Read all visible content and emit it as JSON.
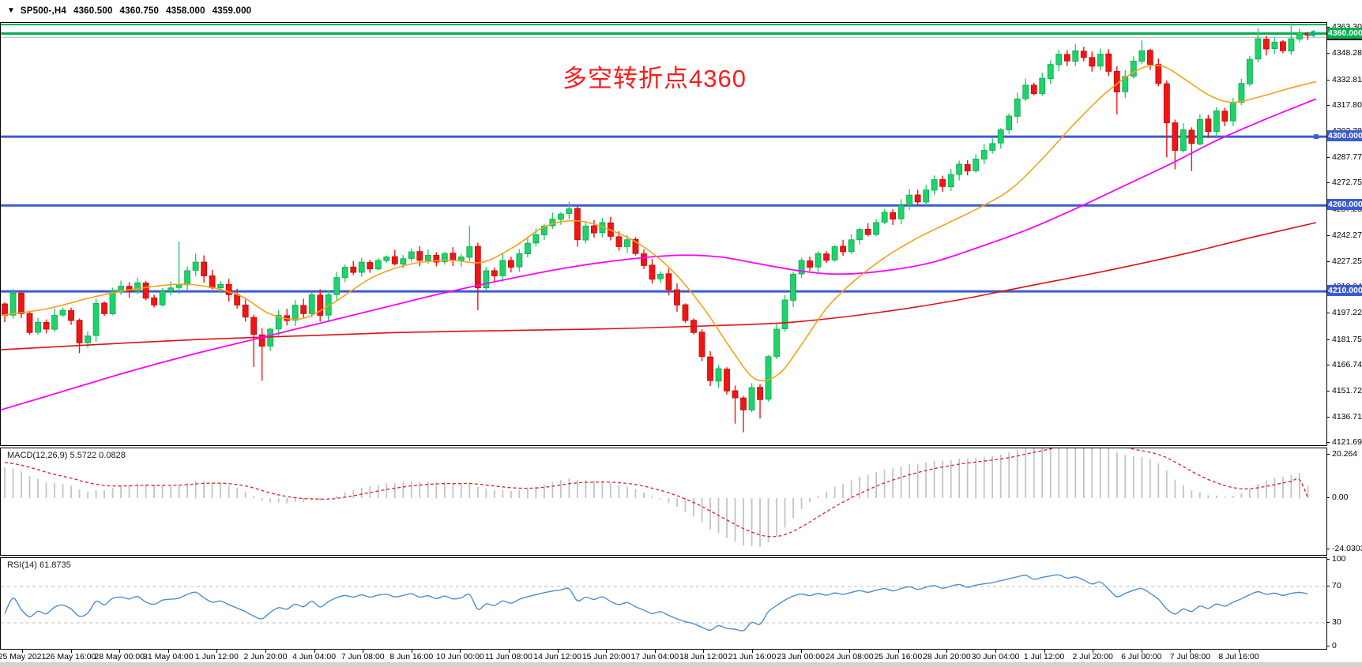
{
  "title_bar": {
    "dropdown_glyph": "▼",
    "symbol_period": "SP500-,H4",
    "open": "4360.500",
    "high": "4360.750",
    "low": "4358.000",
    "close": "4359.000"
  },
  "annotation": {
    "text": "多空转折点4360",
    "color": "#fb1d1d"
  },
  "colors": {
    "candle_up": "#1fd26a",
    "candle_up_border": "#0aa84f",
    "candle_down": "#f01515",
    "candle_down_border": "#c40808",
    "ma_fast": "#f7a11a",
    "ma_mid": "#ff00ff",
    "ma_slow": "#dd1111",
    "hline_green": "#00b050",
    "hline_blue": "#3c5bd0",
    "bid_line": "#b4b4b4",
    "macd_bar": "#c4c4c4",
    "macd_signal": "#dd2222",
    "rsi_line": "#4a8fd4",
    "rsi_level": "#bbbbbb",
    "badge_black": "#000000",
    "arrow_marker": "#00b487"
  },
  "price_axis": {
    "ticks": [
      "4363.300",
      "4348.285",
      "4332.815",
      "4317.800",
      "4302.785",
      "4287.770",
      "4272.755",
      "4257.285",
      "4242.270",
      "4227.255",
      "4212.240",
      "4197.225",
      "4181.755",
      "4166.740",
      "4151.725",
      "4136.710",
      "4121.695"
    ],
    "badges": [
      {
        "label": "4359.000",
        "price": 4359.0,
        "bg": "#000000"
      },
      {
        "label": "4360.000",
        "price": 4360.0,
        "bg": "#00b050"
      },
      {
        "label": "4300.000",
        "price": 4300.0,
        "bg": "#3c5bd0"
      },
      {
        "label": "4260.000",
        "price": 4260.0,
        "bg": "#3c5bd0"
      },
      {
        "label": "4210.000",
        "price": 4210.0,
        "bg": "#3c5bd0"
      }
    ]
  },
  "time_axis": {
    "labels": [
      "25 May 2021",
      "26 May 16:00",
      "28 May 00:00",
      "31 May 04:00",
      "1 Jun 12:00",
      "2 Jun 20:00",
      "4 Jun 04:00",
      "7 Jun 08:00",
      "8 Jun 16:00",
      "10 Jun 00:00",
      "11 Jun 08:00",
      "14 Jun 12:00",
      "15 Jun 20:00",
      "17 Jun 04:00",
      "18 Jun 12:00",
      "21 Jun 16:00",
      "23 Jun 00:00",
      "24 Jun 08:00",
      "25 Jun 16:00",
      "28 Jun 20:00",
      "30 Jun 04:00",
      "1 Jul 12:00",
      "2 Jul 20:00",
      "6 Jul 00:00",
      "7 Jul 08:00",
      "8 Jul 16:00"
    ]
  },
  "panels": {
    "macd": {
      "label": "MACD(12,26,9)",
      "values": "5.5722 0.0828",
      "ticks": [
        {
          "v": 20.264,
          "label": "20.264"
        },
        {
          "v": 0,
          "label": "0.00"
        },
        {
          "v": -24.0303,
          "label": "-24.0303"
        }
      ]
    },
    "rsi": {
      "label": "RSI(14)",
      "value": "61.8735",
      "ticks": [
        {
          "v": 100,
          "label": "100"
        },
        {
          "v": 70,
          "label": "70"
        },
        {
          "v": 30,
          "label": "30"
        },
        {
          "v": 0,
          "label": "0"
        }
      ],
      "levels": [
        70,
        30
      ]
    }
  },
  "chart_data": {
    "type": "candlestick",
    "symbol": "SP500-",
    "timeframe": "H4",
    "visible_bars": 158,
    "noise_seed": 7,
    "first_open": 4203,
    "closes_by_index": [
      [
        0,
        4196
      ],
      [
        1,
        4209
      ],
      [
        2,
        4197
      ],
      [
        3,
        4186
      ],
      [
        4,
        4192
      ],
      [
        5,
        4188
      ],
      [
        6,
        4196
      ],
      [
        7,
        4199
      ],
      [
        8,
        4193
      ],
      [
        9,
        4180
      ],
      [
        10,
        4184
      ],
      [
        11,
        4203
      ],
      [
        12,
        4197
      ],
      [
        13,
        4210
      ],
      [
        14,
        4213
      ],
      [
        15,
        4210
      ],
      [
        16,
        4215
      ],
      [
        17,
        4206
      ],
      [
        18,
        4202
      ],
      [
        19,
        4210
      ],
      [
        20,
        4212
      ],
      [
        21,
        4214
      ],
      [
        22,
        4222
      ],
      [
        23,
        4227
      ],
      [
        24,
        4219
      ],
      [
        25,
        4212
      ],
      [
        26,
        4214
      ],
      [
        27,
        4208
      ],
      [
        28,
        4202
      ],
      [
        29,
        4195
      ],
      [
        30,
        4185
      ],
      [
        31,
        4178
      ],
      [
        32,
        4188
      ],
      [
        33,
        4196
      ],
      [
        34,
        4193
      ],
      [
        35,
        4202
      ],
      [
        36,
        4197
      ],
      [
        37,
        4208
      ],
      [
        38,
        4196
      ],
      [
        39,
        4208
      ],
      [
        40,
        4218
      ],
      [
        41,
        4224
      ],
      [
        42,
        4221
      ],
      [
        43,
        4227
      ],
      [
        44,
        4223
      ],
      [
        45,
        4228
      ],
      [
        46,
        4230
      ],
      [
        47,
        4226
      ],
      [
        48,
        4229
      ],
      [
        49,
        4233
      ],
      [
        50,
        4228
      ],
      [
        51,
        4231
      ],
      [
        52,
        4227
      ],
      [
        53,
        4232
      ],
      [
        54,
        4228
      ],
      [
        55,
        4230
      ],
      [
        56,
        4236
      ],
      [
        57,
        4212
      ],
      [
        58,
        4222
      ],
      [
        59,
        4219
      ],
      [
        60,
        4228
      ],
      [
        61,
        4224
      ],
      [
        62,
        4232
      ],
      [
        63,
        4238
      ],
      [
        64,
        4243
      ],
      [
        65,
        4248
      ],
      [
        66,
        4252
      ],
      [
        67,
        4255
      ],
      [
        68,
        4258
      ],
      [
        69,
        4240
      ],
      [
        70,
        4248
      ],
      [
        71,
        4244
      ],
      [
        72,
        4250
      ],
      [
        73,
        4242
      ],
      [
        74,
        4236
      ],
      [
        75,
        4240
      ],
      [
        76,
        4232
      ],
      [
        77,
        4225
      ],
      [
        78,
        4217
      ],
      [
        79,
        4220
      ],
      [
        80,
        4211
      ],
      [
        81,
        4202
      ],
      [
        82,
        4193
      ],
      [
        83,
        4186
      ],
      [
        84,
        4172
      ],
      [
        85,
        4158
      ],
      [
        86,
        4165
      ],
      [
        87,
        4152
      ],
      [
        88,
        4148
      ],
      [
        89,
        4141
      ],
      [
        90,
        4154
      ],
      [
        91,
        4147
      ],
      [
        92,
        4172
      ],
      [
        93,
        4188
      ],
      [
        94,
        4205
      ],
      [
        95,
        4220
      ],
      [
        96,
        4228
      ],
      [
        97,
        4224
      ],
      [
        98,
        4232
      ],
      [
        99,
        4228
      ],
      [
        100,
        4236
      ],
      [
        101,
        4233
      ],
      [
        102,
        4240
      ],
      [
        103,
        4246
      ],
      [
        104,
        4243
      ],
      [
        105,
        4250
      ],
      [
        106,
        4256
      ],
      [
        107,
        4252
      ],
      [
        108,
        4260
      ],
      [
        109,
        4266
      ],
      [
        110,
        4262
      ],
      [
        111,
        4269
      ],
      [
        112,
        4275
      ],
      [
        113,
        4271
      ],
      [
        114,
        4278
      ],
      [
        115,
        4284
      ],
      [
        116,
        4280
      ],
      [
        117,
        4287
      ],
      [
        118,
        4292
      ],
      [
        119,
        4296
      ],
      [
        120,
        4304
      ],
      [
        121,
        4312
      ],
      [
        122,
        4322
      ],
      [
        123,
        4330
      ],
      [
        124,
        4325
      ],
      [
        125,
        4334
      ],
      [
        126,
        4342
      ],
      [
        127,
        4348
      ],
      [
        128,
        4344
      ],
      [
        129,
        4350
      ],
      [
        130,
        4346
      ],
      [
        131,
        4341
      ],
      [
        132,
        4348
      ],
      [
        133,
        4338
      ],
      [
        134,
        4326
      ],
      [
        135,
        4335
      ],
      [
        136,
        4344
      ],
      [
        137,
        4350
      ],
      [
        138,
        4342
      ],
      [
        139,
        4331
      ],
      [
        140,
        4308
      ],
      [
        141,
        4292
      ],
      [
        142,
        4304
      ],
      [
        143,
        4296
      ],
      [
        144,
        4310
      ],
      [
        145,
        4303
      ],
      [
        146,
        4315
      ],
      [
        147,
        4309
      ],
      [
        148,
        4320
      ],
      [
        149,
        4331
      ],
      [
        150,
        4345
      ],
      [
        151,
        4357
      ],
      [
        152,
        4351
      ],
      [
        153,
        4355
      ],
      [
        154,
        4350
      ],
      [
        155,
        4357
      ],
      [
        156,
        4360.5
      ],
      [
        157,
        4359
      ]
    ],
    "wick_high": {
      "21": 4239,
      "23": 4232,
      "56": 4248,
      "68": 4262,
      "129": 4354,
      "137": 4356,
      "151": 4363,
      "155": 4366,
      "157": 4360.75
    },
    "wick_low": {
      "9": 4174,
      "30": 4166,
      "31": 4158,
      "57": 4199,
      "88": 4133,
      "89": 4128,
      "91": 4136,
      "134": 4313,
      "140": 4288,
      "141": 4281,
      "143": 4280,
      "157": 4358
    },
    "hlines": [
      {
        "price": 4365.2,
        "color": "#00b050",
        "width": 2
      },
      {
        "price": 4360.0,
        "color": "#00b050",
        "width": 3
      },
      {
        "price": 4357.8,
        "color": "#b4b4b4",
        "width": 1
      },
      {
        "price": 4300.0,
        "color": "#3c5bd0",
        "width": 3,
        "handle": true
      },
      {
        "price": 4260.0,
        "color": "#3c5bd0",
        "width": 3
      },
      {
        "price": 4210.0,
        "color": "#3c5bd0",
        "width": 3
      }
    ],
    "moving_averages": {
      "orange_fast": [
        [
          0,
          4196
        ],
        [
          60,
          4200
        ],
        [
          120,
          4207
        ],
        [
          180,
          4212
        ],
        [
          240,
          4214
        ],
        [
          300,
          4208
        ],
        [
          340,
          4197
        ],
        [
          380,
          4194
        ],
        [
          420,
          4203
        ],
        [
          470,
          4218
        ],
        [
          520,
          4226
        ],
        [
          570,
          4228
        ],
        [
          610,
          4227
        ],
        [
          650,
          4236
        ],
        [
          690,
          4248
        ],
        [
          730,
          4251
        ],
        [
          770,
          4246
        ],
        [
          810,
          4237
        ],
        [
          850,
          4222
        ],
        [
          890,
          4200
        ],
        [
          925,
          4176
        ],
        [
          955,
          4159
        ],
        [
          985,
          4162
        ],
        [
          1015,
          4180
        ],
        [
          1045,
          4200
        ],
        [
          1080,
          4216
        ],
        [
          1120,
          4230
        ],
        [
          1160,
          4241
        ],
        [
          1200,
          4250
        ],
        [
          1240,
          4259
        ],
        [
          1280,
          4270
        ],
        [
          1320,
          4288
        ],
        [
          1360,
          4308
        ],
        [
          1400,
          4326
        ],
        [
          1440,
          4339
        ],
        [
          1470,
          4341
        ],
        [
          1500,
          4333
        ],
        [
          1530,
          4324
        ],
        [
          1560,
          4320
        ],
        [
          1600,
          4324
        ],
        [
          1630,
          4328
        ],
        [
          1665,
          4332
        ]
      ],
      "magenta_mid": [
        [
          0,
          4141
        ],
        [
          80,
          4152
        ],
        [
          160,
          4163
        ],
        [
          240,
          4173
        ],
        [
          320,
          4182
        ],
        [
          400,
          4191
        ],
        [
          480,
          4200
        ],
        [
          560,
          4209
        ],
        [
          640,
          4217
        ],
        [
          720,
          4224
        ],
        [
          800,
          4229
        ],
        [
          860,
          4231
        ],
        [
          910,
          4230
        ],
        [
          960,
          4226
        ],
        [
          1010,
          4222
        ],
        [
          1060,
          4220
        ],
        [
          1120,
          4222
        ],
        [
          1180,
          4227
        ],
        [
          1240,
          4236
        ],
        [
          1300,
          4246
        ],
        [
          1360,
          4258
        ],
        [
          1420,
          4271
        ],
        [
          1480,
          4284
        ],
        [
          1540,
          4298
        ],
        [
          1600,
          4310
        ],
        [
          1665,
          4322
        ]
      ],
      "red_slow": [
        [
          0,
          4176
        ],
        [
          250,
          4182
        ],
        [
          500,
          4186
        ],
        [
          750,
          4188
        ],
        [
          900,
          4190
        ],
        [
          1000,
          4192
        ],
        [
          1100,
          4197
        ],
        [
          1200,
          4204
        ],
        [
          1300,
          4213
        ],
        [
          1400,
          4222
        ],
        [
          1500,
          4232
        ],
        [
          1580,
          4241
        ],
        [
          1665,
          4250
        ]
      ]
    },
    "macd": {
      "fast": 12,
      "slow": 26,
      "signal": 9,
      "seed_fast": 4202,
      "seed_slow": 4186,
      "seed_signal": 17.2,
      "current_main": 5.5722,
      "current_signal": 0.0828,
      "axis": [
        20.264,
        0.0,
        -24.0303
      ]
    },
    "rsi": {
      "period": 14,
      "seed_gain": 1.1,
      "seed_loss": 1.1,
      "current": 61.8735,
      "levels": [
        70,
        30
      ],
      "axis": [
        100,
        70,
        30,
        0
      ]
    },
    "price_axis_range": [
      4119.4,
      4366.3
    ]
  }
}
